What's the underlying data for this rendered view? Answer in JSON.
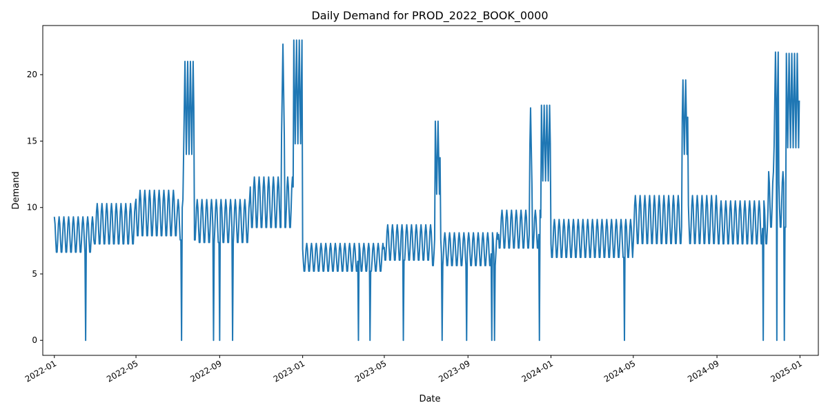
{
  "chart_data": {
    "type": "line",
    "title": "Daily Demand for PROD_2022_BOOK_0000",
    "xlabel": "Date",
    "ylabel": "Demand",
    "x_range": [
      "2021-12-15",
      "2025-01-28"
    ],
    "ylim": [
      -1.13,
      23.7
    ],
    "x_ticks": [
      "2022-01",
      "2022-05",
      "2022-09",
      "2023-01",
      "2023-05",
      "2023-09",
      "2024-01",
      "2024-05",
      "2024-09",
      "2025-01"
    ],
    "x_tick_dates": [
      "2022-01-01",
      "2022-05-01",
      "2022-09-01",
      "2023-01-01",
      "2023-05-01",
      "2023-09-01",
      "2024-01-01",
      "2024-05-01",
      "2024-09-01",
      "2025-01-01"
    ],
    "y_ticks": [
      0,
      5,
      10,
      15,
      20
    ],
    "grid": false,
    "series": [
      {
        "color": "#1f77b4",
        "description": "Daily demand with weekly oscillation; piecewise segments define base level and weekly amplitude, spikes and zero-dropouts listed separately",
        "segments": [
          {
            "start": "2022-01-01",
            "end": "2022-02-28",
            "base": 7.9,
            "amp": 1.4
          },
          {
            "start": "2022-03-01",
            "end": "2022-04-30",
            "base": 8.7,
            "amp": 1.6
          },
          {
            "start": "2022-05-01",
            "end": "2022-06-30",
            "base": 9.5,
            "amp": 1.8
          },
          {
            "start": "2022-07-01",
            "end": "2022-07-31",
            "base": 9.0,
            "amp": 1.6
          },
          {
            "start": "2022-08-01",
            "end": "2022-10-15",
            "base": 8.9,
            "amp": 1.7
          },
          {
            "start": "2022-10-16",
            "end": "2022-12-31",
            "base": 10.3,
            "amp": 2.0
          },
          {
            "start": "2023-01-01",
            "end": "2023-04-30",
            "base": 6.2,
            "amp": 1.1
          },
          {
            "start": "2023-05-01",
            "end": "2023-07-10",
            "base": 7.3,
            "amp": 1.4
          },
          {
            "start": "2023-07-11",
            "end": "2023-10-15",
            "base": 6.8,
            "amp": 1.3
          },
          {
            "start": "2023-10-16",
            "end": "2023-12-31",
            "base": 8.3,
            "amp": 1.5
          },
          {
            "start": "2024-01-01",
            "end": "2024-04-30",
            "base": 7.6,
            "amp": 1.5
          },
          {
            "start": "2024-05-01",
            "end": "2024-08-31",
            "base": 9.0,
            "amp": 1.9
          },
          {
            "start": "2024-09-01",
            "end": "2024-11-15",
            "base": 8.8,
            "amp": 1.7
          },
          {
            "start": "2024-11-16",
            "end": "2024-12-31",
            "base": 10.5,
            "amp": 2.2
          }
        ],
        "spikes": [
          {
            "start": "2022-07-10",
            "end": "2022-07-25",
            "low": 14.0,
            "high": 21.0
          },
          {
            "start": "2022-12-01",
            "end": "2022-12-05",
            "low": 15.5,
            "high": 22.3
          },
          {
            "start": "2022-12-19",
            "end": "2022-12-31",
            "low": 14.8,
            "high": 22.6
          },
          {
            "start": "2023-07-15",
            "end": "2023-07-22",
            "low": 11.0,
            "high": 16.5
          },
          {
            "start": "2023-12-01",
            "end": "2023-12-04",
            "low": 11.8,
            "high": 17.5
          },
          {
            "start": "2023-12-18",
            "end": "2023-12-31",
            "low": 12.0,
            "high": 17.7
          },
          {
            "start": "2024-07-12",
            "end": "2024-07-20",
            "low": 14.0,
            "high": 19.6
          },
          {
            "start": "2024-11-24",
            "end": "2024-11-30",
            "low": 14.6,
            "high": 21.7
          },
          {
            "start": "2024-12-12",
            "end": "2024-12-31",
            "low": 14.5,
            "high": 21.6
          }
        ],
        "zeros": [
          "2022-02-16",
          "2022-07-07",
          "2022-08-23",
          "2022-09-01",
          "2022-09-20",
          "2023-03-24",
          "2023-04-10",
          "2023-05-29",
          "2023-07-25",
          "2023-08-30",
          "2023-10-06",
          "2023-10-10",
          "2023-12-15",
          "2024-04-18",
          "2024-11-08",
          "2024-11-28",
          "2024-12-09"
        ]
      }
    ]
  }
}
